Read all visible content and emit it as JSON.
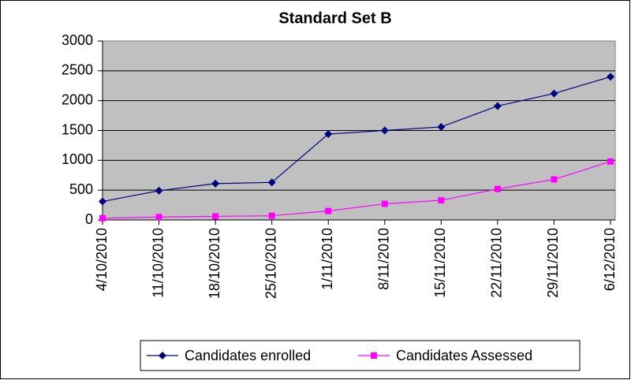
{
  "chart_data": {
    "type": "line",
    "title": "Standard Set B",
    "categories": [
      "4/10/2010",
      "11/10/2010",
      "18/10/2010",
      "25/10/2010",
      "1/11/2010",
      "8/11/2010",
      "15/11/2010",
      "22/11/2010",
      "29/11/2010",
      "6/12/2010"
    ],
    "series": [
      {
        "name": "Candidates enrolled",
        "color": "#000080",
        "marker": "diamond",
        "values": [
          310,
          490,
          610,
          630,
          1440,
          1500,
          1560,
          1910,
          2120,
          2400
        ]
      },
      {
        "name": "Candidates Assessed",
        "color": "#ff00ff",
        "marker": "square",
        "values": [
          30,
          50,
          60,
          70,
          150,
          270,
          330,
          520,
          680,
          980
        ]
      }
    ],
    "ylim": [
      0,
      3000
    ],
    "yticks": [
      0,
      500,
      1000,
      1500,
      2000,
      2500,
      3000
    ],
    "grid": true,
    "legend": "bottom"
  }
}
